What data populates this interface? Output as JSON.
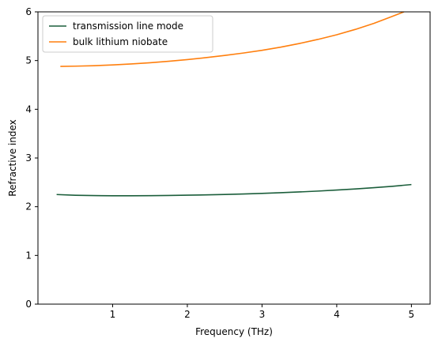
{
  "chart_data": {
    "type": "line",
    "xlabel": "Frequency (THz)",
    "ylabel": "Refractive index",
    "xlim": [
      0.0,
      5.25
    ],
    "ylim": [
      0,
      6
    ],
    "xticks": [
      1,
      2,
      3,
      4,
      5
    ],
    "yticks": [
      0,
      1,
      2,
      3,
      4,
      5,
      6
    ],
    "grid": false,
    "legend_position": "top-left",
    "series": [
      {
        "name": "transmission line mode",
        "color": "#1b5e3b",
        "x": [
          0.25,
          0.5,
          0.75,
          1.0,
          1.25,
          1.5,
          1.75,
          2.0,
          2.25,
          2.5,
          2.75,
          3.0,
          3.25,
          3.5,
          3.75,
          4.0,
          4.25,
          4.5,
          4.75,
          5.0
        ],
        "y": [
          2.25,
          2.235,
          2.228,
          2.225,
          2.225,
          2.227,
          2.231,
          2.236,
          2.243,
          2.251,
          2.261,
          2.273,
          2.287,
          2.303,
          2.321,
          2.342,
          2.365,
          2.391,
          2.42,
          2.455
        ]
      },
      {
        "name": "bulk lithium niobate",
        "color": "#ff7f0e",
        "x": [
          0.3,
          0.5,
          0.75,
          1.0,
          1.25,
          1.5,
          1.75,
          2.0,
          2.25,
          2.5,
          2.75,
          3.0,
          3.25,
          3.5,
          3.75,
          4.0,
          4.25,
          4.5,
          4.75,
          4.9
        ],
        "y": [
          4.88,
          4.885,
          4.895,
          4.91,
          4.93,
          4.955,
          4.985,
          5.02,
          5.06,
          5.105,
          5.155,
          5.21,
          5.275,
          5.35,
          5.435,
          5.53,
          5.64,
          5.765,
          5.91,
          6.0
        ]
      }
    ]
  }
}
